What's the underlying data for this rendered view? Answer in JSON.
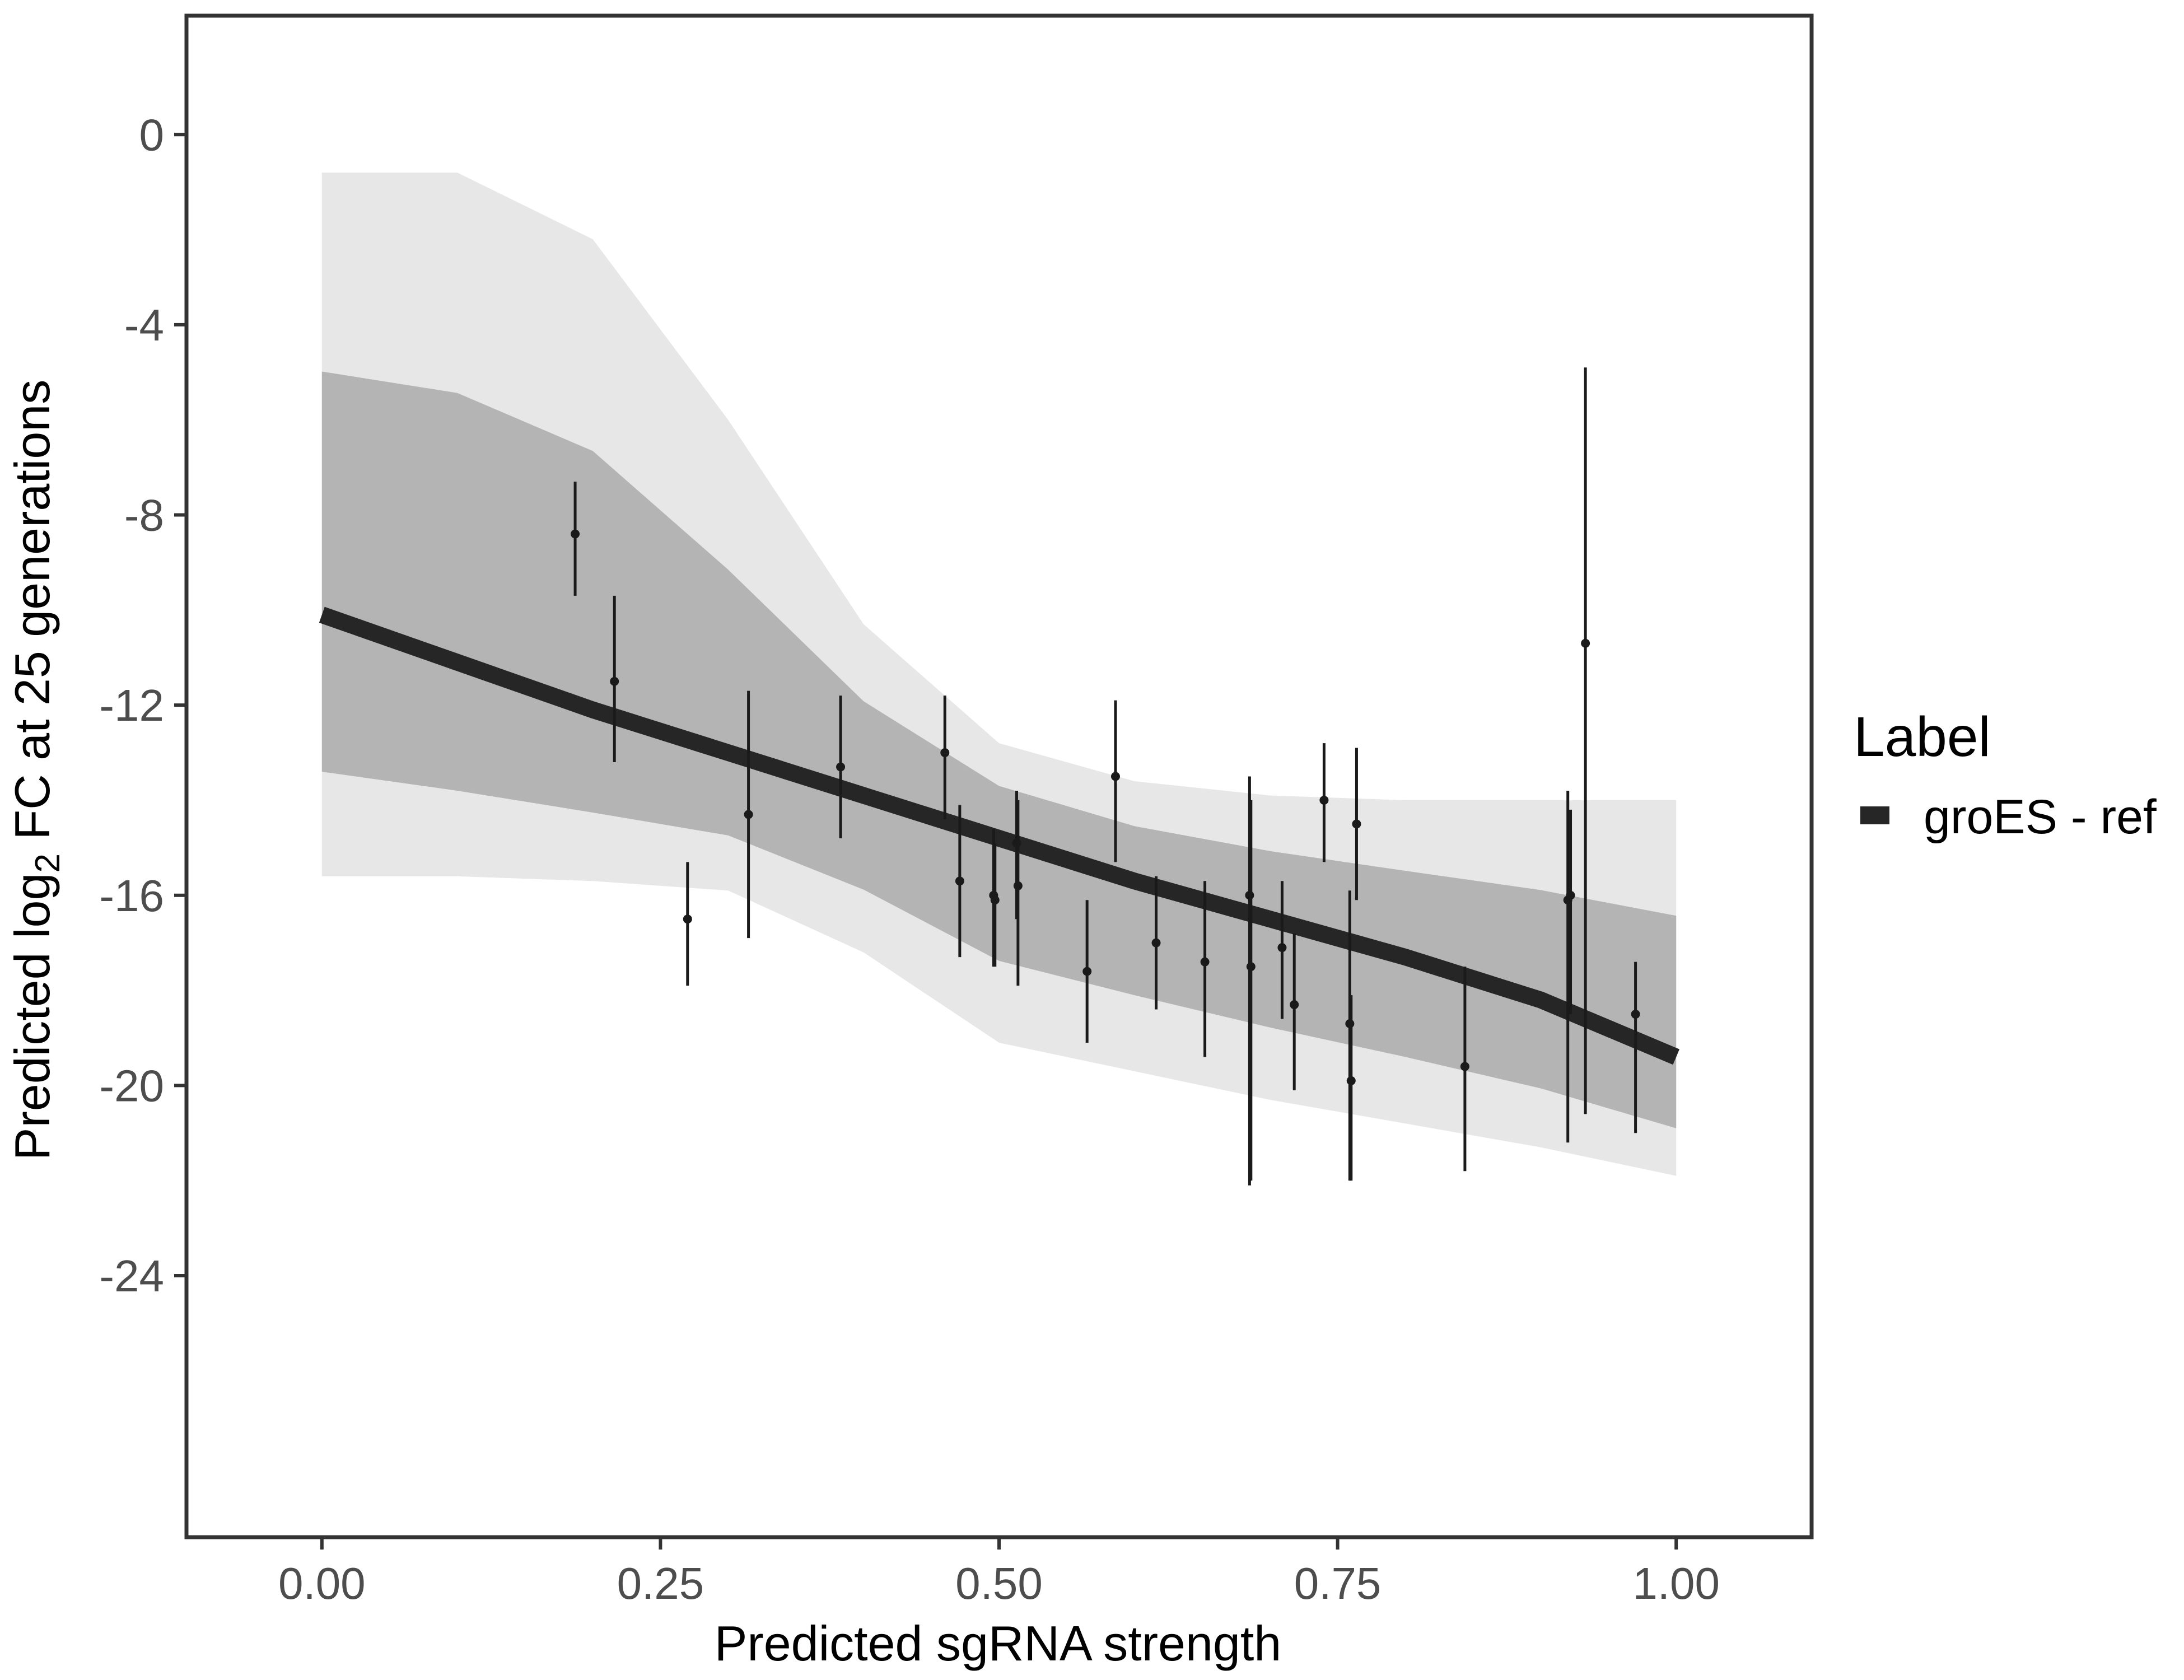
{
  "chart_data": {
    "type": "line",
    "title": "",
    "xlabel": "Predicted sgRNA strength",
    "ylabel_prefix": "Predicted  log",
    "ylabel_subscript": "2",
    "ylabel_suffix": " FC at 25 generations",
    "xlim": [
      -0.1,
      1.1
    ],
    "ylim": [
      -29.5,
      2.5
    ],
    "x_ticks": [
      0.0,
      0.25,
      0.5,
      0.75,
      1.0
    ],
    "x_tick_labels": [
      "0.00",
      "0.25",
      "0.50",
      "0.75",
      "1.00"
    ],
    "y_ticks": [
      0,
      -4,
      -8,
      -12,
      -16,
      -20,
      -24
    ],
    "y_tick_labels": [
      "0",
      "-4",
      "-8",
      "-12",
      "-16",
      "-20",
      "-24"
    ],
    "grid": false,
    "legend": {
      "title": "Label",
      "position": "right",
      "entries": [
        {
          "label": "groES - ref",
          "color": "#262626"
        }
      ]
    },
    "fit_series": {
      "name": "groES - ref",
      "color": "#262626",
      "x": [
        0.0,
        0.1,
        0.2,
        0.3,
        0.4,
        0.5,
        0.6,
        0.7,
        0.8,
        0.9,
        1.0
      ],
      "y": [
        -10.1,
        -11.1,
        -12.1,
        -13.0,
        -13.9,
        -14.8,
        -15.7,
        -16.5,
        -17.3,
        -18.2,
        -19.4
      ]
    },
    "posterior_band": {
      "color": "#aaaaaa",
      "x": [
        0.0,
        0.1,
        0.2,
        0.3,
        0.4,
        0.5,
        0.6,
        0.7,
        0.8,
        0.9,
        1.0
      ],
      "upper": [
        -0.8,
        -0.8,
        -2.2,
        -6.0,
        -10.3,
        -12.8,
        -13.6,
        -13.9,
        -14.0,
        -14.0,
        -14.0
      ],
      "lower": [
        -15.6,
        -15.6,
        -15.7,
        -15.9,
        -17.2,
        -19.1,
        -19.7,
        -20.3,
        -20.8,
        -21.3,
        -21.9
      ]
    },
    "points": [
      {
        "x": 0.187,
        "y": -8.4,
        "ymin": -9.7,
        "ymax": -7.3
      },
      {
        "x": 0.216,
        "y": -11.5,
        "ymin": -13.2,
        "ymax": -9.7
      },
      {
        "x": 0.27,
        "y": -16.5,
        "ymin": -17.9,
        "ymax": -15.3
      },
      {
        "x": 0.315,
        "y": -14.3,
        "ymin": -16.9,
        "ymax": -11.7
      },
      {
        "x": 0.383,
        "y": -13.3,
        "ymin": -14.8,
        "ymax": -11.8
      },
      {
        "x": 0.46,
        "y": -13.0,
        "ymin": -14.4,
        "ymax": -11.8
      },
      {
        "x": 0.471,
        "y": -15.7,
        "ymin": -17.3,
        "ymax": -14.1
      },
      {
        "x": 0.496,
        "y": -16.0,
        "ymin": -17.5,
        "ymax": -14.6
      },
      {
        "x": 0.497,
        "y": -16.1,
        "ymin": -17.5,
        "ymax": -14.9
      },
      {
        "x": 0.513,
        "y": -14.9,
        "ymin": -16.5,
        "ymax": -13.8
      },
      {
        "x": 0.514,
        "y": -15.8,
        "ymin": -17.9,
        "ymax": -14.0
      },
      {
        "x": 0.565,
        "y": -17.6,
        "ymin": -19.1,
        "ymax": -16.1
      },
      {
        "x": 0.586,
        "y": -13.5,
        "ymin": -15.3,
        "ymax": -11.9
      },
      {
        "x": 0.616,
        "y": -17.0,
        "ymin": -18.4,
        "ymax": -15.6
      },
      {
        "x": 0.652,
        "y": -17.4,
        "ymin": -19.4,
        "ymax": -15.7
      },
      {
        "x": 0.685,
        "y": -16.0,
        "ymin": -22.1,
        "ymax": -13.5
      },
      {
        "x": 0.686,
        "y": -17.5,
        "ymin": -22.0,
        "ymax": -14.0
      },
      {
        "x": 0.709,
        "y": -17.1,
        "ymin": -18.6,
        "ymax": -15.7
      },
      {
        "x": 0.718,
        "y": -18.3,
        "ymin": -20.1,
        "ymax": -16.8
      },
      {
        "x": 0.74,
        "y": -14.0,
        "ymin": -15.3,
        "ymax": -12.8
      },
      {
        "x": 0.759,
        "y": -18.7,
        "ymin": -22.0,
        "ymax": -15.9
      },
      {
        "x": 0.76,
        "y": -19.9,
        "ymin": -22.0,
        "ymax": -18.1
      },
      {
        "x": 0.764,
        "y": -14.5,
        "ymin": -16.1,
        "ymax": -12.9
      },
      {
        "x": 0.844,
        "y": -19.6,
        "ymin": -21.8,
        "ymax": -17.5
      },
      {
        "x": 0.92,
        "y": -16.1,
        "ymin": -21.2,
        "ymax": -13.8
      },
      {
        "x": 0.922,
        "y": -16.0,
        "ymin": -18.5,
        "ymax": -14.2
      },
      {
        "x": 0.933,
        "y": -10.7,
        "ymin": -20.6,
        "ymax": -4.9
      },
      {
        "x": 0.97,
        "y": -18.5,
        "ymin": -21.0,
        "ymax": -17.4
      }
    ]
  }
}
